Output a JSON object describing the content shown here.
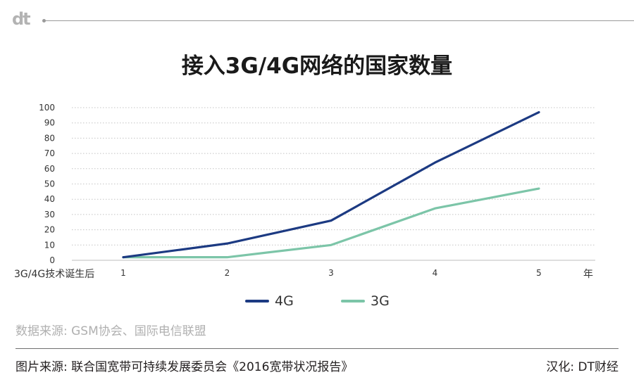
{
  "brand": {
    "logo_text": "dt"
  },
  "header": {
    "title": "接入3G/4G网络的国家数量"
  },
  "chart_data": {
    "type": "line",
    "title": "接入3G/4G网络的国家数量",
    "xlabel": "年",
    "x_start_label": "3G/4G技术诞生后",
    "x": [
      1,
      2,
      3,
      4,
      5
    ],
    "ylim": [
      0,
      100
    ],
    "yticks": [
      0,
      10,
      20,
      30,
      40,
      50,
      60,
      70,
      80,
      90,
      100
    ],
    "grid": true,
    "legend_position": "bottom-center",
    "series": [
      {
        "name": "4G",
        "color": "#1c3a82",
        "values": [
          2,
          11,
          26,
          64,
          97
        ]
      },
      {
        "name": "3G",
        "color": "#7cc5a8",
        "values": [
          2,
          2,
          10,
          34,
          47
        ]
      }
    ]
  },
  "footer": {
    "data_source": "数据来源: GSM协会、国际电信联盟",
    "image_source": "图片来源: 联合国宽带可持续发展委员会《2016宽带状况报告》",
    "credit": "汉化: DT财经"
  }
}
